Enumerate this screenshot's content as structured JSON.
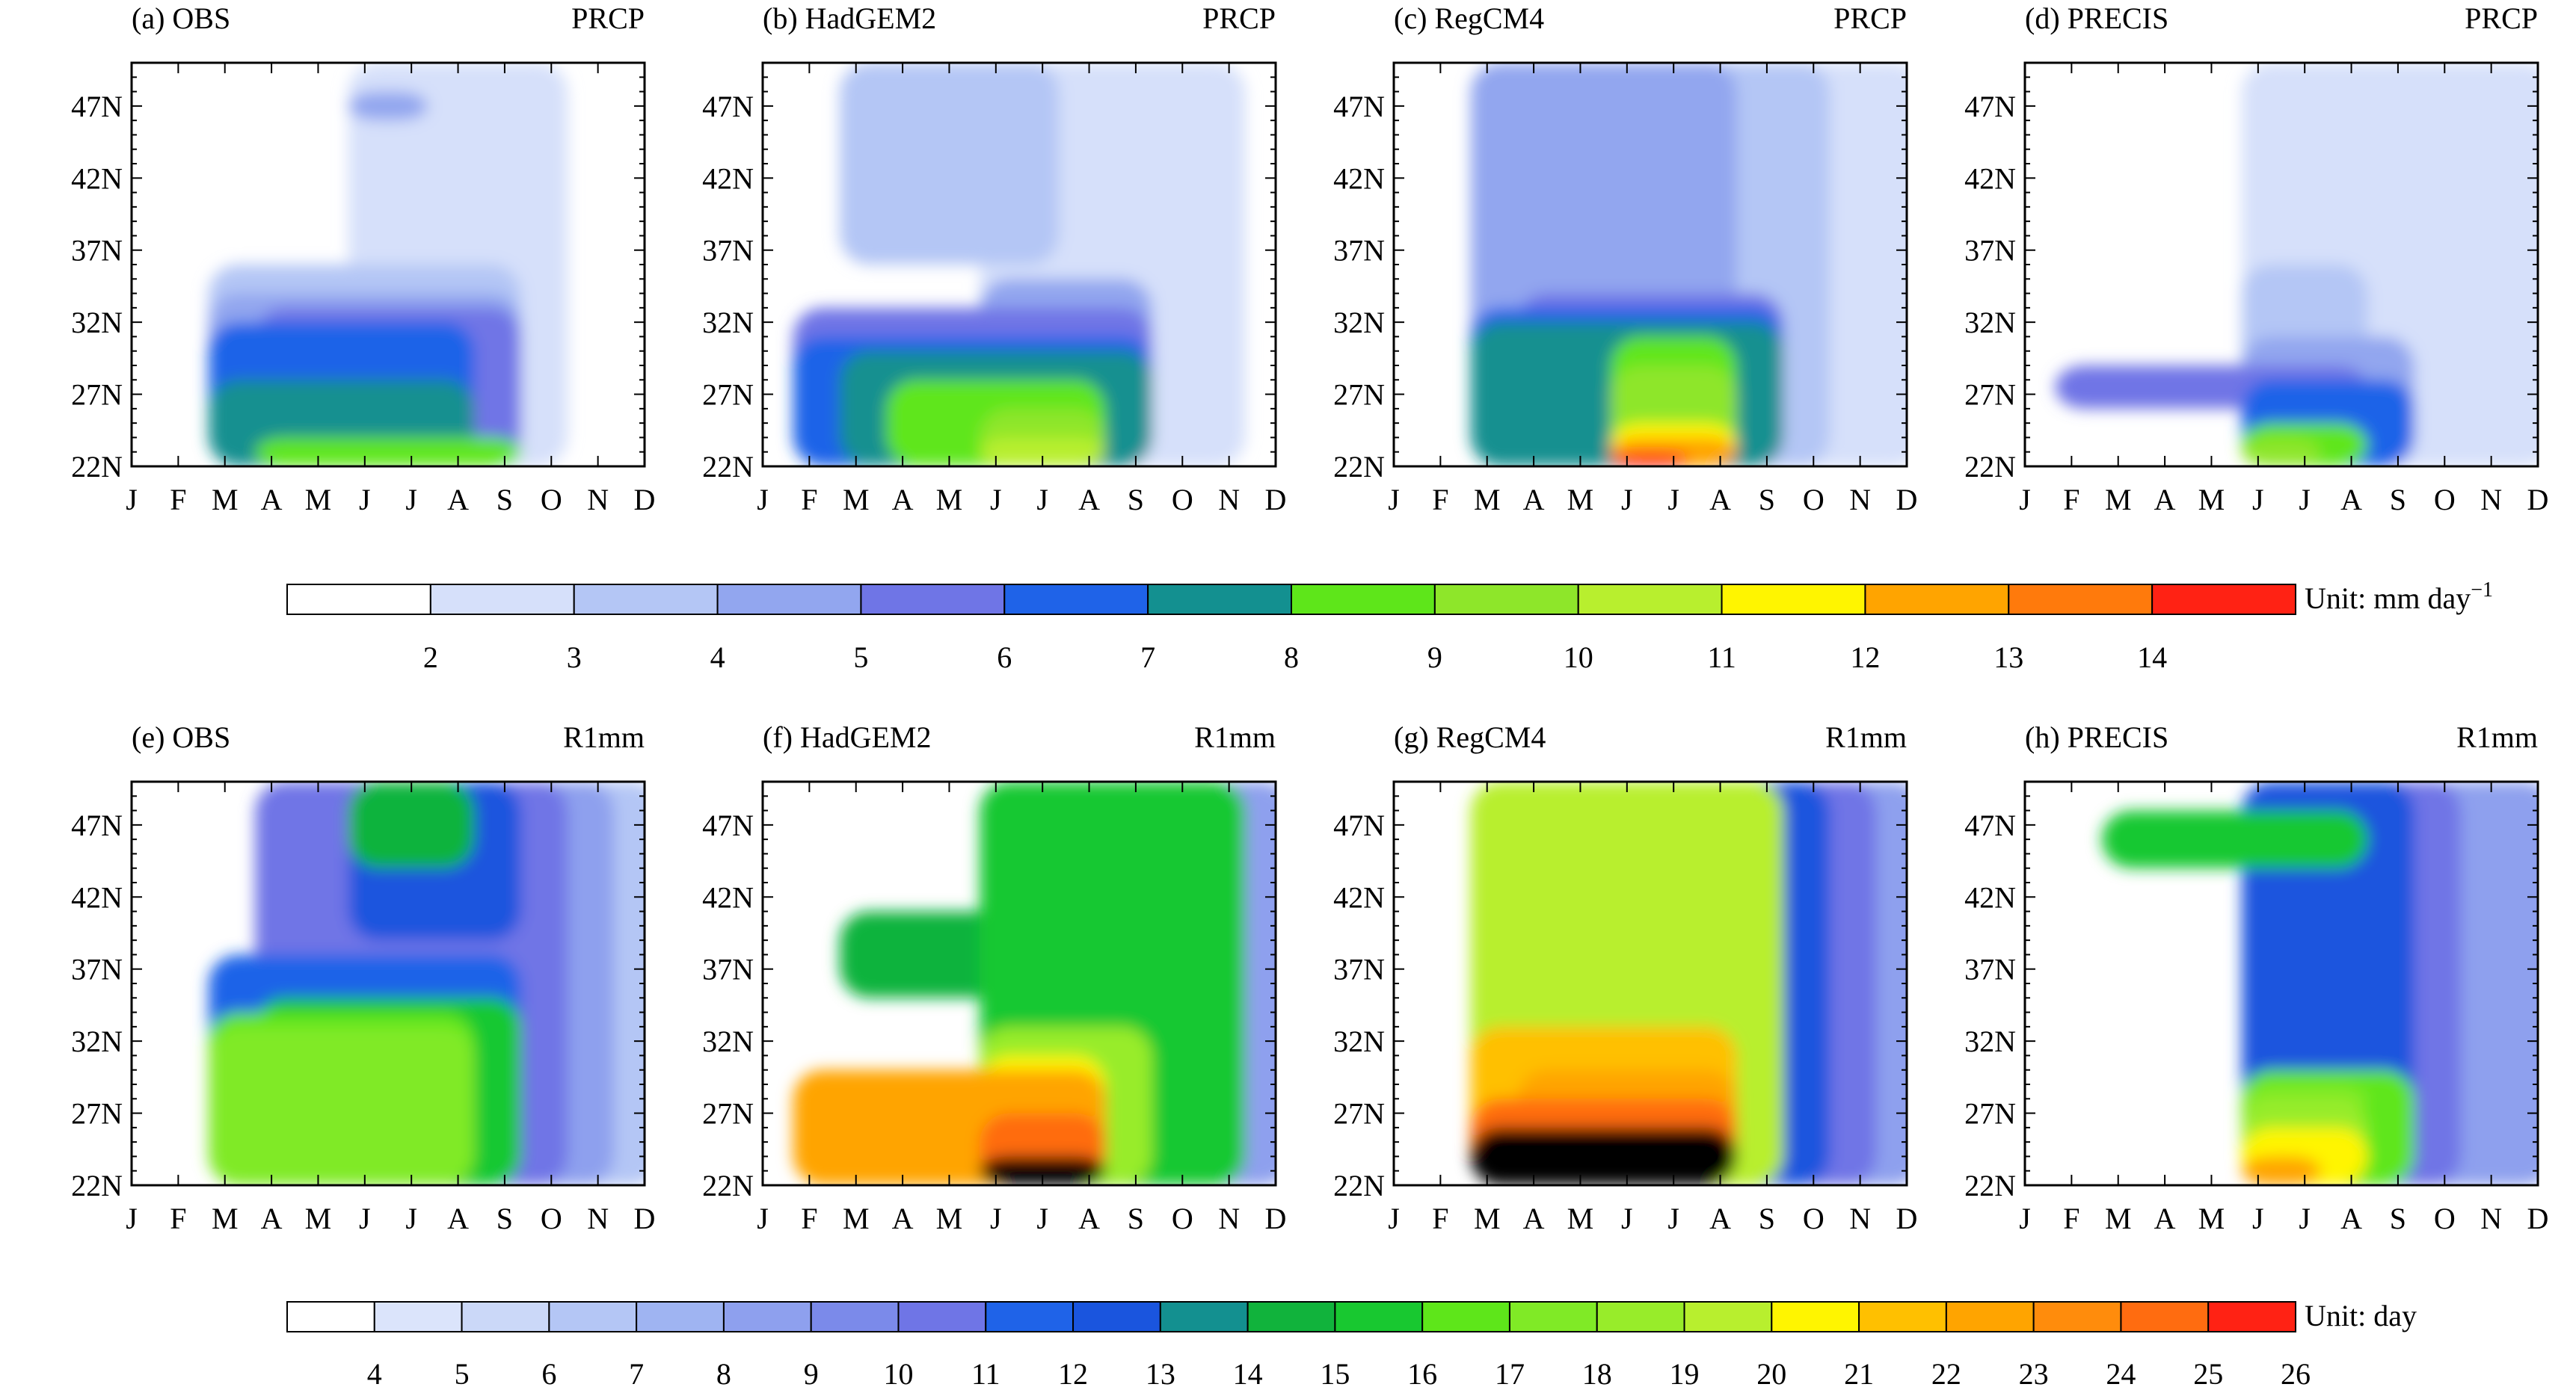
{
  "panels": [
    {
      "tag": "(a) OBS",
      "var": "PRCP"
    },
    {
      "tag": "(b) HadGEM2",
      "var": "PRCP"
    },
    {
      "tag": "(c) RegCM4",
      "var": "PRCP"
    },
    {
      "tag": "(d) PRECIS",
      "var": "PRCP"
    },
    {
      "tag": "(e) OBS",
      "var": "R1mm"
    },
    {
      "tag": "(f) HadGEM2",
      "var": "R1mm"
    },
    {
      "tag": "(g) RegCM4",
      "var": "R1mm"
    },
    {
      "tag": "(h) PRECIS",
      "var": "R1mm"
    }
  ],
  "colorbars": [
    {
      "unit_label": "Unit: mm day",
      "unit_superscript": "−1",
      "levels": [
        "2",
        "3",
        "4",
        "5",
        "6",
        "7",
        "8",
        "9",
        "10",
        "11",
        "12",
        "13",
        "14"
      ],
      "colors": [
        "#ffffff",
        "#d6e0fa",
        "#b4c6f5",
        "#92a6ef",
        "#6f75e6",
        "#1f63e8",
        "#139090",
        "#5ee61a",
        "#8ee62a",
        "#b8ef2e",
        "#fff500",
        "#ffa400",
        "#ff7a0c",
        "#ff2214"
      ]
    },
    {
      "unit_label": "Unit: day",
      "unit_superscript": "",
      "levels": [
        "4",
        "5",
        "6",
        "7",
        "8",
        "9",
        "10",
        "11",
        "12",
        "13",
        "14",
        "15",
        "16",
        "17",
        "18",
        "19",
        "20",
        "21",
        "22",
        "23",
        "24",
        "25",
        "26"
      ],
      "colors": [
        "#ffffff",
        "#dbe4fb",
        "#cbd8f8",
        "#b4c6f5",
        "#9fb4f2",
        "#8ea0ee",
        "#7b8aea",
        "#6f75e6",
        "#1f63e8",
        "#1a55de",
        "#139090",
        "#11b33c",
        "#18c830",
        "#5ee61a",
        "#80ea26",
        "#98ec2a",
        "#b8ef2e",
        "#fff500",
        "#ffc000",
        "#ffa400",
        "#ff8c0c",
        "#ff6c10",
        "#ff2214"
      ]
    }
  ],
  "chart_data": [
    {
      "type": "heatmap",
      "title": "(a) OBS",
      "variable": "PRCP",
      "x": [
        "J",
        "F",
        "M",
        "A",
        "M",
        "J",
        "J",
        "A",
        "S",
        "O",
        "N",
        "D"
      ],
      "yticks": [
        "22N",
        "27N",
        "32N",
        "37N",
        "42N",
        "47N"
      ],
      "ylim": [
        22,
        50
      ],
      "value_kind": "filled contours",
      "peak": {
        "month": "J",
        "lat": "22N",
        "value": "8-9"
      },
      "cells": [
        [
          8.5,
          0,
          "A",
          "S",
          22,
          24
        ],
        [
          7.5,
          0,
          "M",
          "A",
          22,
          28
        ],
        [
          6.5,
          0,
          "M",
          "A",
          22,
          32
        ],
        [
          5.5,
          0,
          "A",
          "S",
          22,
          33
        ],
        [
          4.5,
          0,
          "M",
          "S",
          22,
          34
        ],
        [
          3.5,
          0,
          "M",
          "S",
          22,
          36
        ],
        [
          2.5,
          0,
          "J",
          "O",
          22,
          50
        ],
        [
          4.5,
          0,
          "J",
          "J",
          46,
          48
        ]
      ]
    },
    {
      "type": "heatmap",
      "title": "(b) HadGEM2",
      "variable": "PRCP",
      "x": [
        "J",
        "F",
        "M",
        "A",
        "M",
        "J",
        "J",
        "A",
        "S",
        "O",
        "N",
        "D"
      ],
      "yticks": [
        "22N",
        "27N",
        "32N",
        "37N",
        "42N",
        "47N"
      ],
      "ylim": [
        22,
        50
      ],
      "value_kind": "filled contours",
      "peak": {
        "month": "J",
        "lat": "22N",
        "value": "10-11"
      },
      "cells": [
        [
          10.5,
          0,
          "J",
          "A",
          22,
          24
        ],
        [
          9.5,
          0,
          "J",
          "A",
          22,
          26
        ],
        [
          8.5,
          0,
          "A",
          "A",
          22,
          28
        ],
        [
          7.5,
          0,
          "M",
          "S",
          22,
          30
        ],
        [
          6.5,
          0,
          "F",
          "S",
          22,
          31
        ],
        [
          5.5,
          0,
          "F",
          "S",
          22,
          33
        ],
        [
          4.5,
          0,
          "J",
          "S",
          22,
          35
        ],
        [
          3.5,
          0,
          "M",
          "J",
          36,
          50
        ],
        [
          2.5,
          0,
          "J",
          "N",
          22,
          50
        ]
      ]
    },
    {
      "type": "heatmap",
      "title": "(c) RegCM4",
      "variable": "PRCP",
      "x": [
        "J",
        "F",
        "M",
        "A",
        "M",
        "J",
        "J",
        "A",
        "S",
        "O",
        "N",
        "D"
      ],
      "yticks": [
        "22N",
        "27N",
        "32N",
        "37N",
        "42N",
        "47N"
      ],
      "ylim": [
        22,
        50
      ],
      "value_kind": "filled contours",
      "peak": {
        "month": "J",
        "lat": "22N",
        "value": ">14"
      },
      "cells": [
        [
          14.5,
          0,
          "J",
          "J",
          22,
          23
        ],
        [
          12.5,
          0,
          "J",
          "A",
          22,
          24
        ],
        [
          11.5,
          0,
          "J",
          "A",
          22,
          25
        ],
        [
          9.5,
          0,
          "J",
          "A",
          22,
          29
        ],
        [
          8.5,
          0,
          "J",
          "A",
          22,
          31
        ],
        [
          7.5,
          0,
          "M",
          "S",
          22,
          32
        ],
        [
          6.5,
          0,
          "M",
          "S",
          22,
          33
        ],
        [
          5.5,
          0,
          "A",
          "S",
          22,
          34
        ],
        [
          4.5,
          0,
          "M",
          "A",
          22,
          50
        ],
        [
          3.5,
          0,
          "J",
          "O",
          22,
          50
        ],
        [
          2.5,
          0,
          "J",
          "D",
          22,
          50
        ]
      ]
    },
    {
      "type": "heatmap",
      "title": "(d) PRECIS",
      "variable": "PRCP",
      "x": [
        "J",
        "F",
        "M",
        "A",
        "M",
        "J",
        "J",
        "A",
        "S",
        "O",
        "N",
        "D"
      ],
      "yticks": [
        "22N",
        "27N",
        "32N",
        "37N",
        "42N",
        "47N"
      ],
      "ylim": [
        22,
        50
      ],
      "value_kind": "filled contours",
      "peak": {
        "month": "J",
        "lat": "22N",
        "value": "9-10"
      },
      "cells": [
        [
          9.5,
          0,
          "J",
          "J",
          22,
          24
        ],
        [
          8.5,
          0,
          "J",
          "A",
          22,
          25
        ],
        [
          6.5,
          0,
          "J",
          "S",
          22,
          28
        ],
        [
          5.5,
          0,
          "F",
          "A",
          26,
          29
        ],
        [
          4.5,
          0,
          "J",
          "S",
          22,
          31
        ],
        [
          3.5,
          0,
          "J",
          "A",
          22,
          36
        ],
        [
          2.5,
          0,
          "J",
          "D",
          22,
          50
        ]
      ]
    },
    {
      "type": "heatmap",
      "title": "(e) OBS",
      "variable": "R1mm",
      "x": [
        "J",
        "F",
        "M",
        "A",
        "M",
        "J",
        "J",
        "A",
        "S",
        "O",
        "N",
        "D"
      ],
      "yticks": [
        "22N",
        "27N",
        "32N",
        "37N",
        "42N",
        "47N"
      ],
      "ylim": [
        22,
        50
      ],
      "value_kind": "filled contours",
      "peak": {
        "month": "J",
        "lat": "27N",
        "value": "17-18"
      },
      "cells": [
        [
          17.5,
          0,
          "M",
          "A",
          22,
          33
        ],
        [
          16.5,
          0,
          "M",
          "A",
          22,
          34
        ],
        [
          15.5,
          0,
          "A",
          "S",
          22,
          35
        ],
        [
          14.5,
          0,
          "J",
          "A",
          44,
          50
        ],
        [
          12.5,
          0,
          "J",
          "S",
          39,
          50
        ],
        [
          11.5,
          0,
          "M",
          "S",
          22,
          38
        ],
        [
          10.5,
          0,
          "A",
          "O",
          22,
          50
        ],
        [
          8.5,
          0,
          "J",
          "N",
          22,
          50
        ],
        [
          6.5,
          0,
          "J",
          "D",
          22,
          50
        ]
      ]
    },
    {
      "type": "heatmap",
      "title": "(f) HadGEM2",
      "variable": "R1mm",
      "x": [
        "J",
        "F",
        "M",
        "A",
        "M",
        "J",
        "J",
        "A",
        "S",
        "O",
        "N",
        "D"
      ],
      "yticks": [
        "22N",
        "27N",
        "32N",
        "37N",
        "42N",
        "47N"
      ],
      "ylim": [
        22,
        50
      ],
      "value_kind": "filled contours",
      "peak": {
        "month": "J",
        "lat": "22N",
        "value": ">26"
      },
      "cells": [
        [
          26.5,
          0,
          "J",
          "A",
          22,
          24
        ],
        [
          24.5,
          0,
          "J",
          "A",
          22,
          27
        ],
        [
          22.5,
          0,
          "F",
          "A",
          22,
          30
        ],
        [
          20.5,
          0,
          "J",
          "A",
          22,
          31
        ],
        [
          18.5,
          0,
          "J",
          "S",
          22,
          33
        ],
        [
          15.5,
          0,
          "J",
          "N",
          22,
          50
        ],
        [
          14.5,
          0,
          "M",
          "N",
          35,
          41
        ],
        [
          12.5,
          0,
          "J",
          "O",
          22,
          50
        ],
        [
          10.5,
          0,
          "J",
          "N",
          22,
          50
        ],
        [
          8.5,
          0,
          "J",
          "D",
          22,
          50
        ]
      ]
    },
    {
      "type": "heatmap",
      "title": "(g) RegCM4",
      "variable": "R1mm",
      "x": [
        "J",
        "F",
        "M",
        "A",
        "M",
        "J",
        "J",
        "A",
        "S",
        "O",
        "N",
        "D"
      ],
      "yticks": [
        "22N",
        "27N",
        "32N",
        "37N",
        "42N",
        "47N"
      ],
      "ylim": [
        22,
        50
      ],
      "value_kind": "filled contours",
      "peak": {
        "month": "J",
        "lat": "22N",
        "value": ">26"
      },
      "cells": [
        [
          26.5,
          0,
          "M",
          "A",
          22,
          26
        ],
        [
          24.5,
          0,
          "M",
          "A",
          22,
          28
        ],
        [
          22.5,
          0,
          "A",
          "A",
          22,
          30
        ],
        [
          21.5,
          0,
          "M",
          "A",
          22,
          33
        ],
        [
          19.5,
          0,
          "M",
          "S",
          22,
          50
        ],
        [
          17.5,
          0,
          "M",
          "S",
          22,
          50
        ],
        [
          15.5,
          0,
          "J",
          "S",
          22,
          50
        ],
        [
          12.5,
          0,
          "J",
          "O",
          22,
          50
        ],
        [
          10.5,
          0,
          "J",
          "N",
          22,
          50
        ],
        [
          8.5,
          0,
          "J",
          "D",
          22,
          50
        ]
      ]
    },
    {
      "type": "heatmap",
      "title": "(h) PRECIS",
      "variable": "R1mm",
      "x": [
        "J",
        "F",
        "M",
        "A",
        "M",
        "J",
        "J",
        "A",
        "S",
        "O",
        "N",
        "D"
      ],
      "yticks": [
        "22N",
        "27N",
        "32N",
        "37N",
        "42N",
        "47N"
      ],
      "ylim": [
        22,
        50
      ],
      "value_kind": "filled contours",
      "peak": {
        "month": "J",
        "lat": "22N",
        "value": "22-23"
      },
      "cells": [
        [
          22.5,
          0,
          "J",
          "J",
          22,
          24
        ],
        [
          20.5,
          0,
          "J",
          "A",
          22,
          26
        ],
        [
          18.5,
          0,
          "J",
          "A",
          22,
          28
        ],
        [
          17.5,
          0,
          "J",
          "A",
          27,
          29
        ],
        [
          16.5,
          0,
          "J",
          "S",
          22,
          30
        ],
        [
          15.5,
          0,
          "M",
          "A",
          44,
          48
        ],
        [
          12.5,
          0,
          "J",
          "S",
          22,
          50
        ],
        [
          10.5,
          0,
          "J",
          "O",
          22,
          50
        ],
        [
          8.5,
          0,
          "J",
          "D",
          22,
          50
        ]
      ]
    }
  ]
}
